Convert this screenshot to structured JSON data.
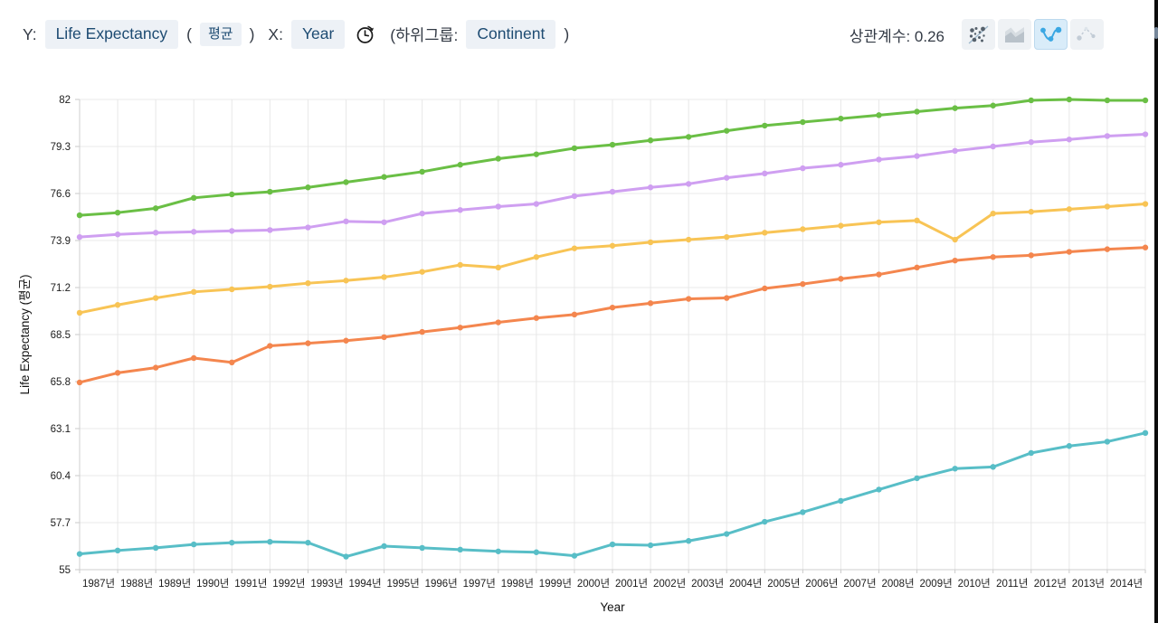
{
  "header": {
    "y_label_prefix": "Y:",
    "y_field": "Life Expectancy",
    "y_agg_open": "(",
    "y_agg": "평균",
    "y_agg_close": ")",
    "x_label_prefix": "X:",
    "x_field": "Year",
    "subgroup_open": "(하위그룹:",
    "subgroup_field": "Continent",
    "subgroup_close": ")",
    "correlation_label": "상관계수: 0.26",
    "chart_type_buttons": [
      {
        "icon": "scatter-chart-icon",
        "active": false
      },
      {
        "icon": "area-chart-icon",
        "active": false
      },
      {
        "icon": "line-chart-icon",
        "active": true
      },
      {
        "icon": "dashed-line-chart-icon",
        "active": false
      }
    ]
  },
  "chart_data": {
    "type": "line",
    "title": "",
    "xlabel": "Year",
    "ylabel": "Life Expectancy (평균)",
    "grid": true,
    "legend": "none",
    "x_tick_labels": [
      "1987년",
      "1988년",
      "1989년",
      "1990년",
      "1991년",
      "1992년",
      "1993년",
      "1994년",
      "1995년",
      "1996년",
      "1997년",
      "1998년",
      "1999년",
      "2000년",
      "2001년",
      "2002년",
      "2003년",
      "2004년",
      "2005년",
      "2006년",
      "2007년",
      "2008년",
      "2009년",
      "2010년",
      "2011년",
      "2012년",
      "2013년",
      "2014년"
    ],
    "points_per_series": 29,
    "last_point_unlabeled": true,
    "y_axis": {
      "ticks": [
        55,
        57.7,
        60.4,
        63.1,
        65.8,
        68.5,
        71.2,
        73.9,
        76.6,
        79.3,
        82
      ],
      "range": [
        55,
        82
      ]
    },
    "series": [
      {
        "name": "green-line",
        "color": "#6abf45",
        "values": [
          75.35,
          75.5,
          75.75,
          76.35,
          76.55,
          76.7,
          76.95,
          77.25,
          77.55,
          77.85,
          78.25,
          78.6,
          78.85,
          79.2,
          79.4,
          79.65,
          79.85,
          80.2,
          80.5,
          80.7,
          80.9,
          81.1,
          81.3,
          81.5,
          81.65,
          81.95,
          82.0,
          81.95,
          81.95
        ]
      },
      {
        "name": "purple-line",
        "color": "#cf9ff1",
        "values": [
          74.1,
          74.25,
          74.35,
          74.4,
          74.45,
          74.5,
          74.65,
          75.0,
          74.95,
          75.45,
          75.65,
          75.85,
          76.0,
          76.45,
          76.7,
          76.95,
          77.15,
          77.5,
          77.75,
          78.05,
          78.25,
          78.55,
          78.75,
          79.05,
          79.3,
          79.55,
          79.7,
          79.9,
          80.0
        ]
      },
      {
        "name": "yellow-line",
        "color": "#f8c455",
        "values": [
          69.75,
          70.2,
          70.6,
          70.95,
          71.1,
          71.25,
          71.45,
          71.6,
          71.8,
          72.1,
          72.5,
          72.35,
          72.95,
          73.45,
          73.6,
          73.8,
          73.95,
          74.1,
          74.35,
          74.55,
          74.75,
          74.95,
          75.05,
          73.95,
          75.45,
          75.55,
          75.7,
          75.85,
          76.0
        ]
      },
      {
        "name": "orange-line",
        "color": "#f4864e",
        "values": [
          65.75,
          66.3,
          66.6,
          67.15,
          66.9,
          67.85,
          68.0,
          68.15,
          68.35,
          68.65,
          68.9,
          69.2,
          69.45,
          69.65,
          70.05,
          70.3,
          70.55,
          70.6,
          71.15,
          71.4,
          71.7,
          71.95,
          72.35,
          72.75,
          72.95,
          73.05,
          73.25,
          73.4,
          73.5
        ]
      },
      {
        "name": "teal-line",
        "color": "#58bec7",
        "values": [
          55.9,
          56.1,
          56.25,
          56.45,
          56.55,
          56.6,
          56.55,
          55.75,
          56.35,
          56.25,
          56.15,
          56.05,
          56.0,
          55.8,
          56.45,
          56.4,
          56.65,
          57.05,
          57.75,
          58.3,
          58.95,
          59.6,
          60.25,
          60.8,
          60.9,
          61.7,
          62.1,
          62.35,
          62.85
        ]
      }
    ]
  }
}
